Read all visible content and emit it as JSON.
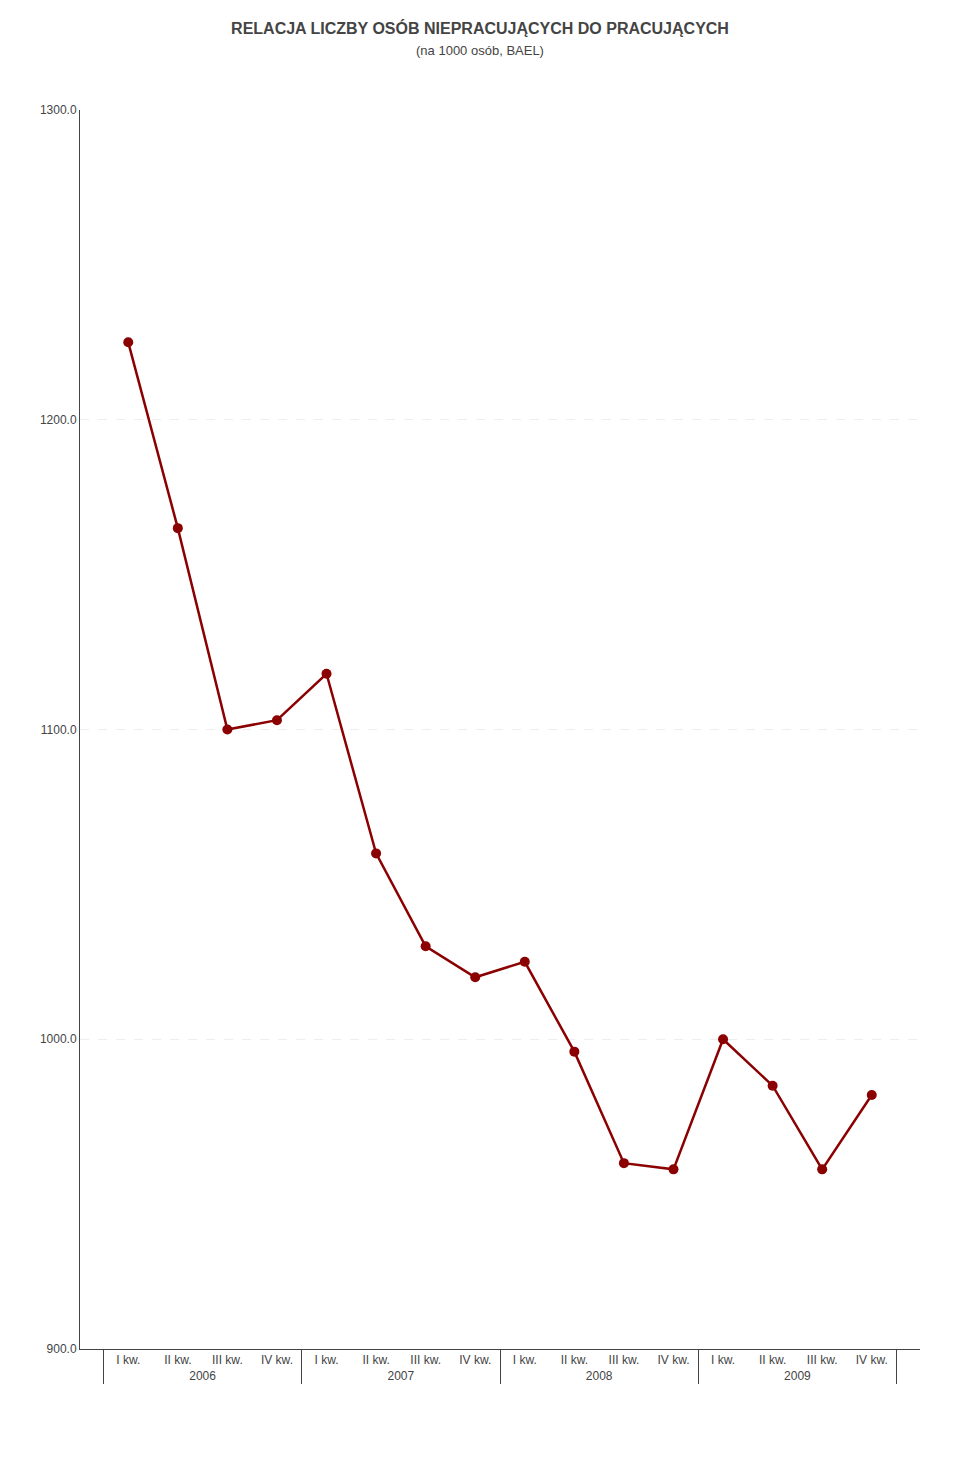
{
  "chart_data": {
    "type": "line",
    "title": "RELACJA LICZBY OSÓB NIEPRACUJĄCYCH DO PRACUJĄCYCH",
    "subtitle": "(na 1000 osób, BAEL)",
    "categories": [
      "I kw.",
      "II kw.",
      "III kw.",
      "IV kw.",
      "I kw.",
      "II kw.",
      "III kw.",
      "IV kw.",
      "I kw.",
      "II kw.",
      "III kw.",
      "IV kw.",
      "I kw.",
      "II kw.",
      "III kw.",
      "IV kw."
    ],
    "annotations": [
      "2006",
      "2007",
      "2008",
      "2009"
    ],
    "values": [
      1225,
      1165,
      1100,
      1103,
      1118,
      1060,
      1030,
      1020,
      1025,
      996,
      960,
      958,
      1000,
      985,
      958,
      982
    ],
    "color": "#8b0000",
    "marker": "circle",
    "ylim": [
      900,
      1300
    ],
    "yticks": [
      {
        "value": 900,
        "label": "900.0"
      },
      {
        "value": 1000,
        "label": "1000.0"
      },
      {
        "value": 1100,
        "label": "1100.0"
      },
      {
        "value": 1200,
        "label": "1200.0"
      },
      {
        "value": 1300,
        "label": "1300.0"
      }
    ],
    "grid": true
  }
}
